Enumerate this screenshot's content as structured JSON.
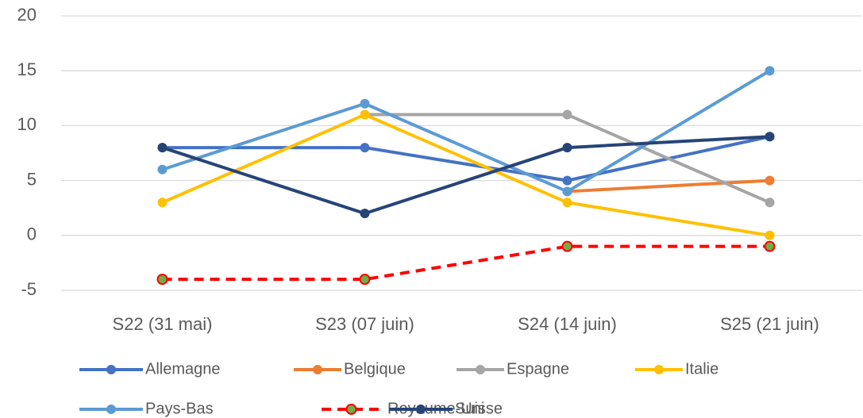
{
  "chart_data": {
    "type": "line",
    "categories": [
      "S22 (31 mai)",
      "S23 (07 juin)",
      "S24 (14 juin)",
      "S25 (21 juin)"
    ],
    "series": [
      {
        "name": "Allemagne",
        "color": "#4472c4",
        "values": [
          8,
          8,
          5,
          9
        ]
      },
      {
        "name": "Belgique",
        "color": "#ed7d31",
        "values": [
          null,
          null,
          4,
          5
        ]
      },
      {
        "name": "Espagne",
        "color": "#a5a5a5",
        "values": [
          null,
          11,
          11,
          3
        ]
      },
      {
        "name": "Italie",
        "color": "#ffc000",
        "values": [
          3,
          11,
          3,
          0
        ]
      },
      {
        "name": "Pays-Bas",
        "color": "#5b9bd5",
        "values": [
          6,
          12,
          4,
          15
        ]
      },
      {
        "name": "Royaume-Uni",
        "color": "#ff0000",
        "line_style": "dashed",
        "marker_color": "#70ad47",
        "values": [
          -4,
          -4,
          -1,
          -1
        ]
      },
      {
        "name": "Suisse",
        "color": "#264478",
        "values": [
          8,
          2,
          8,
          9
        ]
      }
    ],
    "ylim": [
      -5,
      20
    ],
    "yticks": [
      -5,
      0,
      5,
      10,
      15,
      20
    ],
    "grid": true,
    "legend": "bottom"
  }
}
